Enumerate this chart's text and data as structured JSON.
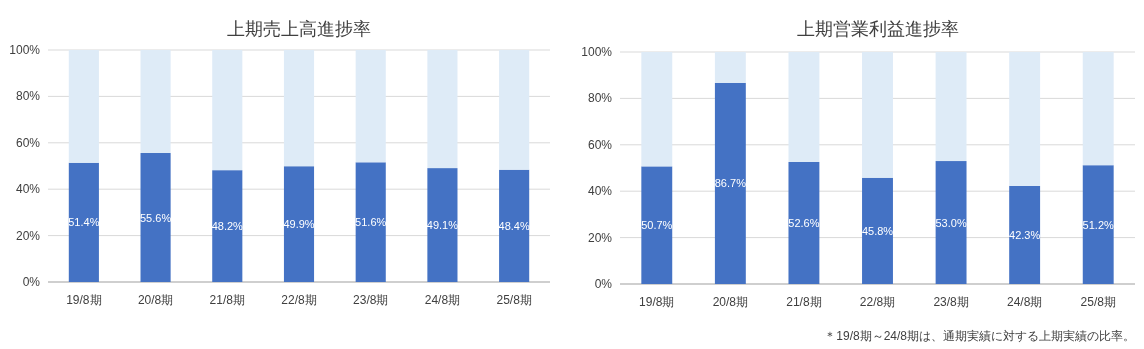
{
  "chart_data": [
    {
      "type": "bar",
      "title": "上期売上高進捗率",
      "categories": [
        "19/8期",
        "20/8期",
        "21/8期",
        "22/8期",
        "23/8期",
        "24/8期",
        "25/8期"
      ],
      "stacked": true,
      "ylim": [
        0,
        100
      ],
      "yticks": [
        {
          "value": 0,
          "label": "0%"
        },
        {
          "value": 20,
          "label": "20%"
        },
        {
          "value": 40,
          "label": "40%"
        },
        {
          "value": 60,
          "label": "60%"
        },
        {
          "value": 80,
          "label": "80%"
        },
        {
          "value": 100,
          "label": "100%"
        }
      ],
      "grid": "y",
      "series": [
        {
          "color": "#4472c4",
          "values": [
            51.4,
            55.6,
            48.2,
            49.9,
            51.6,
            49.1,
            48.4
          ],
          "value_labels": [
            "51.4%",
            "55.6%",
            "48.2%",
            "49.9%",
            "51.6%",
            "49.1%",
            "48.4%"
          ]
        },
        {
          "color": "#deebf7",
          "values": [
            48.6,
            44.4,
            51.8,
            50.1,
            48.4,
            50.9,
            51.6
          ]
        }
      ]
    },
    {
      "type": "bar",
      "title": "上期営業利益進捗率",
      "categories": [
        "19/8期",
        "20/8期",
        "21/8期",
        "22/8期",
        "23/8期",
        "24/8期",
        "25/8期"
      ],
      "stacked": true,
      "ylim": [
        0,
        100
      ],
      "yticks": [
        {
          "value": 0,
          "label": "0%"
        },
        {
          "value": 20,
          "label": "20%"
        },
        {
          "value": 40,
          "label": "40%"
        },
        {
          "value": 60,
          "label": "60%"
        },
        {
          "value": 80,
          "label": "80%"
        },
        {
          "value": 100,
          "label": "100%"
        }
      ],
      "grid": "y",
      "annotations": [
        "＊19/8期～24/8期は、通期実績に対する上期実績の比率。"
      ],
      "series": [
        {
          "color": "#4472c4",
          "values": [
            50.7,
            86.7,
            52.6,
            45.8,
            53.0,
            42.3,
            51.2
          ],
          "value_labels": [
            "50.7%",
            "86.7%",
            "52.6%",
            "45.8%",
            "53.0%",
            "42.3%",
            "51.2%"
          ]
        },
        {
          "color": "#deebf7",
          "values": [
            49.3,
            13.3,
            47.4,
            54.2,
            47.0,
            57.7,
            48.8
          ]
        }
      ]
    }
  ]
}
